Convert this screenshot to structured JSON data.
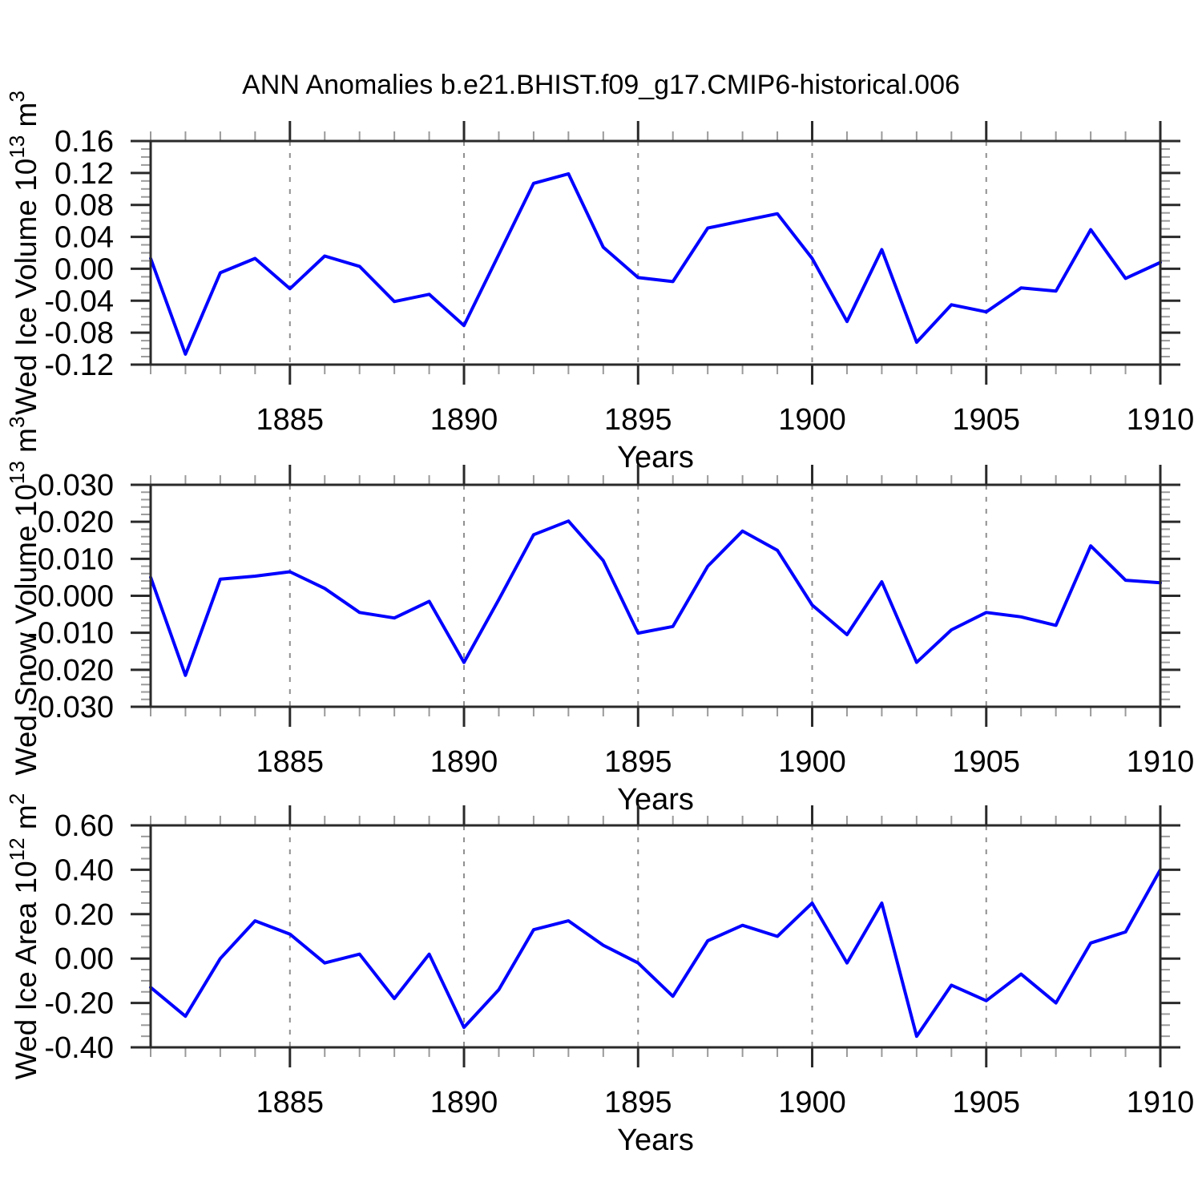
{
  "title": "ANN Anomalies b.e21.BHIST.f09_g17.CMIP6-historical.006",
  "colors": {
    "background": "#ffffff",
    "line": "#0000ff",
    "frame": "#2a2a2a",
    "major_tick": "#2a2a2a",
    "minor_tick": "#9a9a9a",
    "grid": "#8f8f8f",
    "text": "#000000"
  },
  "chart_data": [
    {
      "type": "line",
      "panel": "ice-volume",
      "ylabel": "Wed Ice Volume 10^13 m^3",
      "ylabel_parts": [
        {
          "t": "Wed Ice Volume 10"
        },
        {
          "t": "13",
          "sup": true
        },
        {
          "t": " m"
        },
        {
          "t": "3",
          "sup": true
        }
      ],
      "xlabel": "Years",
      "xlim": [
        1881,
        1910
      ],
      "ylim": [
        -0.12,
        0.16
      ],
      "ytick_major": 0.04,
      "ytick_minor": 0.01,
      "ytick_labels": [
        "0.16",
        "0.12",
        "0.08",
        "0.04",
        "0.00",
        "-0.04",
        "-0.08",
        "-0.12"
      ],
      "xtick_label_years": [
        1885,
        1890,
        1895,
        1900,
        1905,
        1910
      ],
      "xtick_labels": [
        "1885",
        "1890",
        "1895",
        "1900",
        "1905",
        "1910"
      ],
      "grid_x": [
        1885,
        1890,
        1895,
        1900,
        1905
      ],
      "x": [
        1881,
        1882,
        1883,
        1884,
        1885,
        1886,
        1887,
        1888,
        1889,
        1890,
        1891,
        1892,
        1893,
        1894,
        1895,
        1896,
        1897,
        1898,
        1899,
        1900,
        1901,
        1902,
        1903,
        1904,
        1905,
        1906,
        1907,
        1908,
        1909,
        1910
      ],
      "values": [
        0.013,
        -0.107,
        -0.005,
        0.013,
        -0.025,
        0.016,
        0.003,
        -0.041,
        -0.032,
        -0.071,
        0.018,
        0.107,
        0.119,
        0.027,
        -0.011,
        -0.016,
        0.051,
        0.06,
        0.069,
        0.013,
        -0.066,
        0.024,
        -0.092,
        -0.045,
        -0.054,
        -0.024,
        -0.028,
        0.049,
        -0.012,
        0.008
      ]
    },
    {
      "type": "line",
      "panel": "snow-volume",
      "ylabel": "Wed Snow Volume 10^13 m^3",
      "ylabel_parts": [
        {
          "t": "Wed Snow Volume 10"
        },
        {
          "t": "13",
          "sup": true
        },
        {
          "t": " m"
        },
        {
          "t": "3",
          "sup": true
        }
      ],
      "xlabel": "Years",
      "xlim": [
        1881,
        1910
      ],
      "ylim": [
        -0.03,
        0.03
      ],
      "ytick_major": 0.01,
      "ytick_minor": 0.002,
      "ytick_labels": [
        "0.030",
        "0.020",
        "0.010",
        "0.000",
        "-0.010",
        "-0.020",
        "-0.030"
      ],
      "xtick_label_years": [
        1885,
        1890,
        1895,
        1900,
        1905,
        1910
      ],
      "xtick_labels": [
        "1885",
        "1890",
        "1895",
        "1900",
        "1905",
        "1910"
      ],
      "grid_x": [
        1885,
        1890,
        1895,
        1900,
        1905
      ],
      "x": [
        1881,
        1882,
        1883,
        1884,
        1885,
        1886,
        1887,
        1888,
        1889,
        1890,
        1891,
        1892,
        1893,
        1894,
        1895,
        1896,
        1897,
        1898,
        1899,
        1900,
        1901,
        1902,
        1903,
        1904,
        1905,
        1906,
        1907,
        1908,
        1909,
        1910
      ],
      "values": [
        0.005,
        -0.0215,
        0.0045,
        0.0053,
        0.0065,
        0.002,
        -0.0045,
        -0.006,
        -0.0015,
        -0.018,
        -0.001,
        0.0165,
        0.0202,
        0.0095,
        -0.0101,
        -0.0083,
        0.008,
        0.0175,
        0.0123,
        -0.0025,
        -0.0105,
        0.0038,
        -0.018,
        -0.0092,
        -0.0045,
        -0.0057,
        -0.008,
        0.0135,
        0.0042,
        0.0035
      ]
    },
    {
      "type": "line",
      "panel": "ice-area",
      "ylabel": "Wed Ice Area 10^12 m^2",
      "ylabel_parts": [
        {
          "t": "Wed Ice Area 10"
        },
        {
          "t": "12",
          "sup": true
        },
        {
          "t": " m"
        },
        {
          "t": "2",
          "sup": true
        }
      ],
      "xlabel": "Years",
      "xlim": [
        1881,
        1910
      ],
      "ylim": [
        -0.4,
        0.6
      ],
      "ytick_major": 0.2,
      "ytick_minor": 0.05,
      "ytick_labels": [
        "0.60",
        "0.40",
        "0.20",
        "0.00",
        "-0.20",
        "-0.40"
      ],
      "xtick_label_years": [
        1885,
        1890,
        1895,
        1900,
        1905,
        1910
      ],
      "xtick_labels": [
        "1885",
        "1890",
        "1895",
        "1900",
        "1905",
        "1910"
      ],
      "grid_x": [
        1885,
        1890,
        1895,
        1900,
        1905
      ],
      "x": [
        1881,
        1882,
        1883,
        1884,
        1885,
        1886,
        1887,
        1888,
        1889,
        1890,
        1891,
        1892,
        1893,
        1894,
        1895,
        1896,
        1897,
        1898,
        1899,
        1900,
        1901,
        1902,
        1903,
        1904,
        1905,
        1906,
        1907,
        1908,
        1909,
        1910
      ],
      "values": [
        -0.13,
        -0.26,
        0.0,
        0.17,
        0.11,
        -0.02,
        0.02,
        -0.18,
        0.02,
        -0.31,
        -0.14,
        0.13,
        0.17,
        0.06,
        -0.02,
        -0.17,
        0.08,
        0.15,
        0.1,
        0.25,
        -0.02,
        0.25,
        -0.35,
        -0.12,
        -0.19,
        -0.07,
        -0.2,
        0.07,
        0.12,
        0.4
      ]
    }
  ]
}
